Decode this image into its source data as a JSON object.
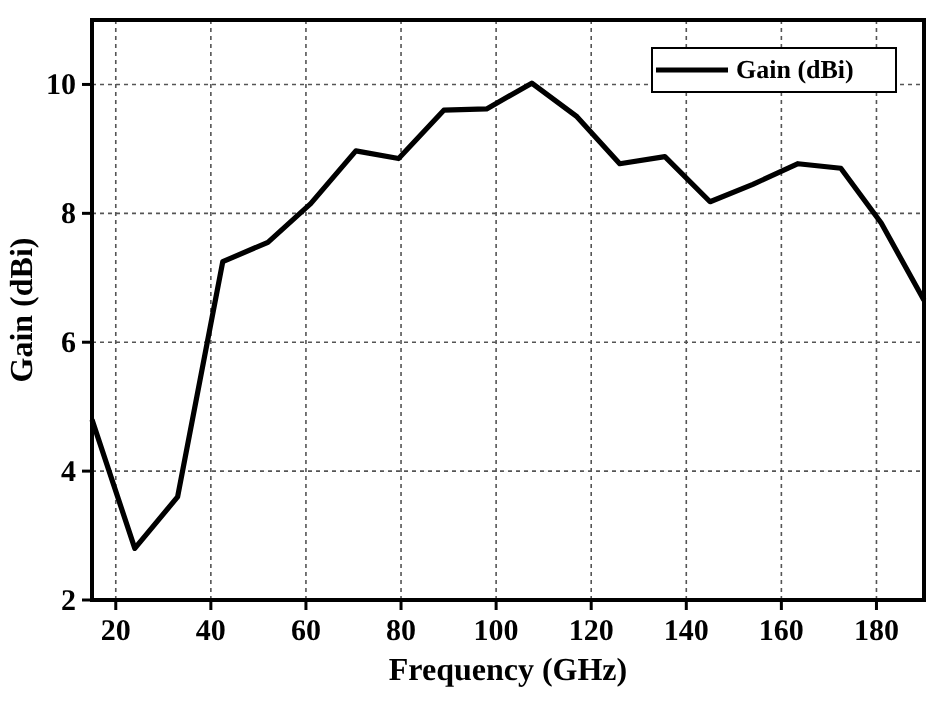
{
  "chart_data": {
    "type": "line",
    "xlabel": "Frequency (GHz)",
    "ylabel": "Gain (dBi)",
    "x": [
      15,
      24,
      33,
      42.5,
      52,
      61,
      70.5,
      79.5,
      89,
      98,
      107.5,
      117,
      126,
      135.5,
      145,
      154,
      163.5,
      172.5,
      181,
      190
    ],
    "series": [
      {
        "name": "Gain (dBi)",
        "color": "#000000",
        "values": [
          4.8,
          2.8,
          3.6,
          7.25,
          7.55,
          8.15,
          8.97,
          8.85,
          9.6,
          9.62,
          10.02,
          9.5,
          8.77,
          8.88,
          8.18,
          8.45,
          8.77,
          8.7,
          7.85,
          6.65
        ]
      }
    ],
    "xlim": [
      15,
      190
    ],
    "xticks": [
      20,
      40,
      60,
      80,
      100,
      120,
      140,
      160,
      180
    ],
    "ylim": [
      2,
      11
    ],
    "yticks": [
      2,
      4,
      6,
      8,
      10
    ],
    "grid": true,
    "legend": "top right",
    "line_style": "solid",
    "marker": "none"
  }
}
